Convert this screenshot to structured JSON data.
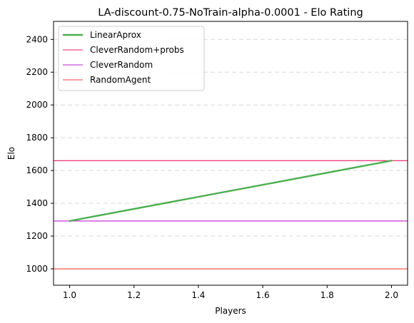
{
  "chart_data": {
    "type": "line",
    "title": "LA-discount-0.75-NoTrain-alpha-0.0001 - Elo Rating",
    "xlabel": "Players",
    "ylabel": "Elo",
    "xlim": [
      0.95,
      2.05
    ],
    "ylim": [
      900,
      2510
    ],
    "xticks": [
      1.0,
      1.2,
      1.4,
      1.6,
      1.8,
      2.0
    ],
    "xtick_labels": [
      "1.0",
      "1.2",
      "1.4",
      "1.6",
      "1.8",
      "2.0"
    ],
    "yticks": [
      1000,
      1200,
      1400,
      1600,
      1800,
      2000,
      2200,
      2400
    ],
    "ytick_labels": [
      "1000",
      "1200",
      "1400",
      "1600",
      "1800",
      "2000",
      "2200",
      "2400"
    ],
    "grid": "y-dashed",
    "legend_position": "top-left",
    "series": [
      {
        "name": "LinearAprox",
        "kind": "line",
        "x": [
          1.0,
          2.0
        ],
        "y": [
          1292,
          1660
        ],
        "color": "#4caf50",
        "width": 2.4
      }
    ],
    "reference_lines": [
      {
        "name": "CleverRandom+probs",
        "y": 1660,
        "color": "#e91e63"
      },
      {
        "name": "CleverRandom",
        "y": 1292,
        "color": "#c31fd4"
      },
      {
        "name": "RandomAgent",
        "y": 1000,
        "color": "#f44336"
      }
    ]
  }
}
